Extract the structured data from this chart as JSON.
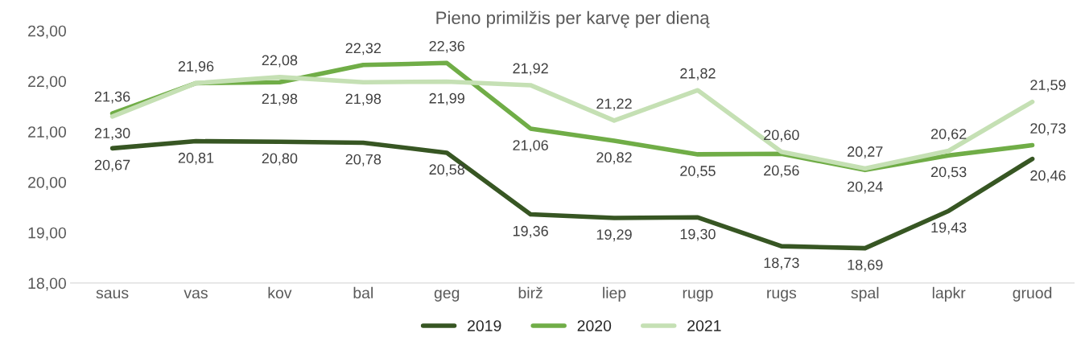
{
  "chart_data": {
    "type": "line",
    "title": "Pieno primilžis per karvę per dieną",
    "categories": [
      "saus",
      "vas",
      "kov",
      "bal",
      "geg",
      "birž",
      "liep",
      "rugp",
      "rugs",
      "spal",
      "lapkr",
      "gruod"
    ],
    "series": [
      {
        "name": "2019",
        "color": "#375623",
        "values": [
          20.67,
          20.81,
          20.8,
          20.78,
          20.58,
          19.36,
          19.29,
          19.3,
          18.73,
          18.69,
          19.43,
          20.46
        ],
        "value_labels": [
          "20,67",
          "20,81",
          "20,80",
          "20,78",
          "20,58",
          "19,36",
          "19,29",
          "19,30",
          "18,73",
          "18,69",
          "19,43",
          "20,46"
        ]
      },
      {
        "name": "2020",
        "color": "#70ad47",
        "values": [
          21.36,
          21.96,
          21.98,
          22.32,
          22.36,
          21.06,
          20.82,
          20.55,
          20.56,
          20.24,
          20.53,
          20.73
        ],
        "value_labels": [
          "21,36",
          null,
          "21,98",
          "22,32",
          "22,36",
          "21,06",
          "20,82",
          "20,55",
          "20,56",
          "20,24",
          "20,53",
          "20,73"
        ]
      },
      {
        "name": "2021",
        "color": "#c5e0b4",
        "values": [
          21.3,
          21.96,
          22.08,
          21.98,
          21.99,
          21.92,
          21.22,
          21.82,
          20.6,
          20.27,
          20.62,
          21.59
        ],
        "value_labels": [
          "21,30",
          "21,96",
          "22,08",
          "21,98",
          "21,99",
          "21,92",
          "21,22",
          "21,82",
          "20,60",
          "20,27",
          "20,62",
          "21,59"
        ]
      }
    ],
    "ylim": [
      18,
      23
    ],
    "yticks": [
      {
        "value": 18,
        "label": "18,00"
      },
      {
        "value": 19,
        "label": "19,00"
      },
      {
        "value": 20,
        "label": "20,00"
      },
      {
        "value": 21,
        "label": "21,00"
      },
      {
        "value": 22,
        "label": "22,00"
      },
      {
        "value": 23,
        "label": "23,00"
      }
    ],
    "grid": false,
    "legend": "bottom",
    "marker": "none",
    "line_style": "solid"
  }
}
